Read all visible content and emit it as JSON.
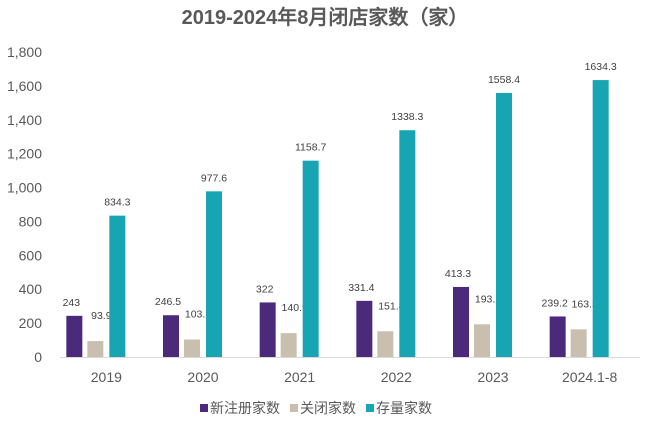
{
  "chart_data": {
    "type": "bar",
    "title": "2019-2024年8月闭店家数（家）",
    "xlabel": "",
    "ylabel": "",
    "categories": [
      "2019",
      "2020",
      "2021",
      "2022",
      "2023",
      "2024.1-8"
    ],
    "ylim": [
      0,
      1800
    ],
    "yticks": [
      0,
      200,
      400,
      600,
      800,
      1000,
      1200,
      1400,
      1600,
      1800
    ],
    "ytick_labels": [
      "0",
      "200",
      "400",
      "600",
      "800",
      "1,000",
      "1,200",
      "1,400",
      "1,600",
      "1,800"
    ],
    "grid": false,
    "legend_position": "bottom",
    "series": [
      {
        "name": "新注册家数",
        "color": "#4B2A7B",
        "values": [
          243,
          246.5,
          322,
          331.4,
          413.3,
          239.2
        ],
        "labels": [
          "243",
          "246.5",
          "322",
          "331.4",
          "413.3",
          "239.2"
        ]
      },
      {
        "name": "关闭家数",
        "color": "#C9BFAF",
        "values": [
          93.9,
          103.2,
          140.9,
          151.8,
          193.2,
          163.3
        ],
        "labels": [
          "93.9",
          "103.2",
          "140.9",
          "151.8",
          "193.2",
          "163.3"
        ]
      },
      {
        "name": "存量家数",
        "color": "#17A5B4",
        "values": [
          834.3,
          977.6,
          1158.7,
          1338.3,
          1558.4,
          1634.3
        ],
        "labels": [
          "834.3",
          "977.6",
          "1158.7",
          "1338.3",
          "1558.4",
          "1634.3"
        ]
      }
    ]
  }
}
